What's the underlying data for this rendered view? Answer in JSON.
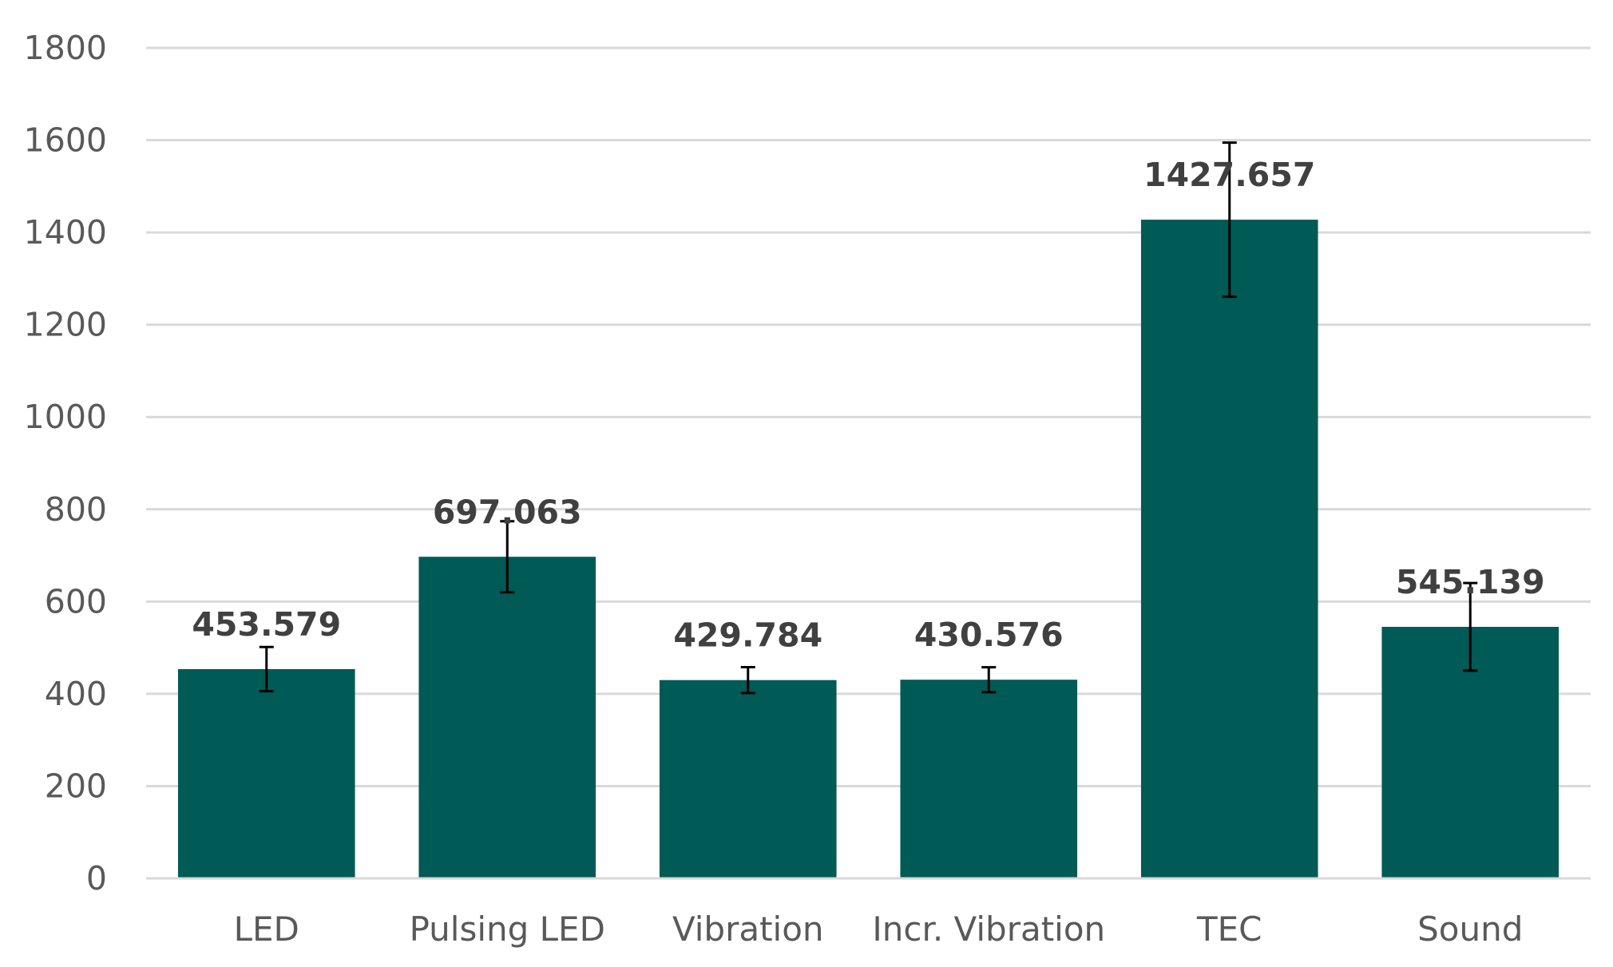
{
  "chart_data": {
    "type": "bar",
    "title": "",
    "xlabel": "",
    "ylabel": "",
    "categories": [
      "LED",
      "Pulsing LED",
      "Vibration",
      "Incr. Vibration",
      "TEC",
      "Sound"
    ],
    "values": [
      453.579,
      697.063,
      429.784,
      430.576,
      1427.657,
      545.139
    ],
    "data_labels": [
      "453.579",
      "697.063",
      "429.784",
      "430.576",
      "1427.657",
      "545.139"
    ],
    "error_bars": [
      48,
      77,
      28,
      27,
      167,
      95
    ],
    "ylim": [
      0,
      1800
    ],
    "yticks": [
      0,
      200,
      400,
      600,
      800,
      1000,
      1200,
      1400,
      1600,
      1800
    ],
    "grid": true,
    "legend": "none",
    "bar_color": "#005a55",
    "grid_color": "#d9d9d9",
    "error_bar_color": "#000000"
  }
}
